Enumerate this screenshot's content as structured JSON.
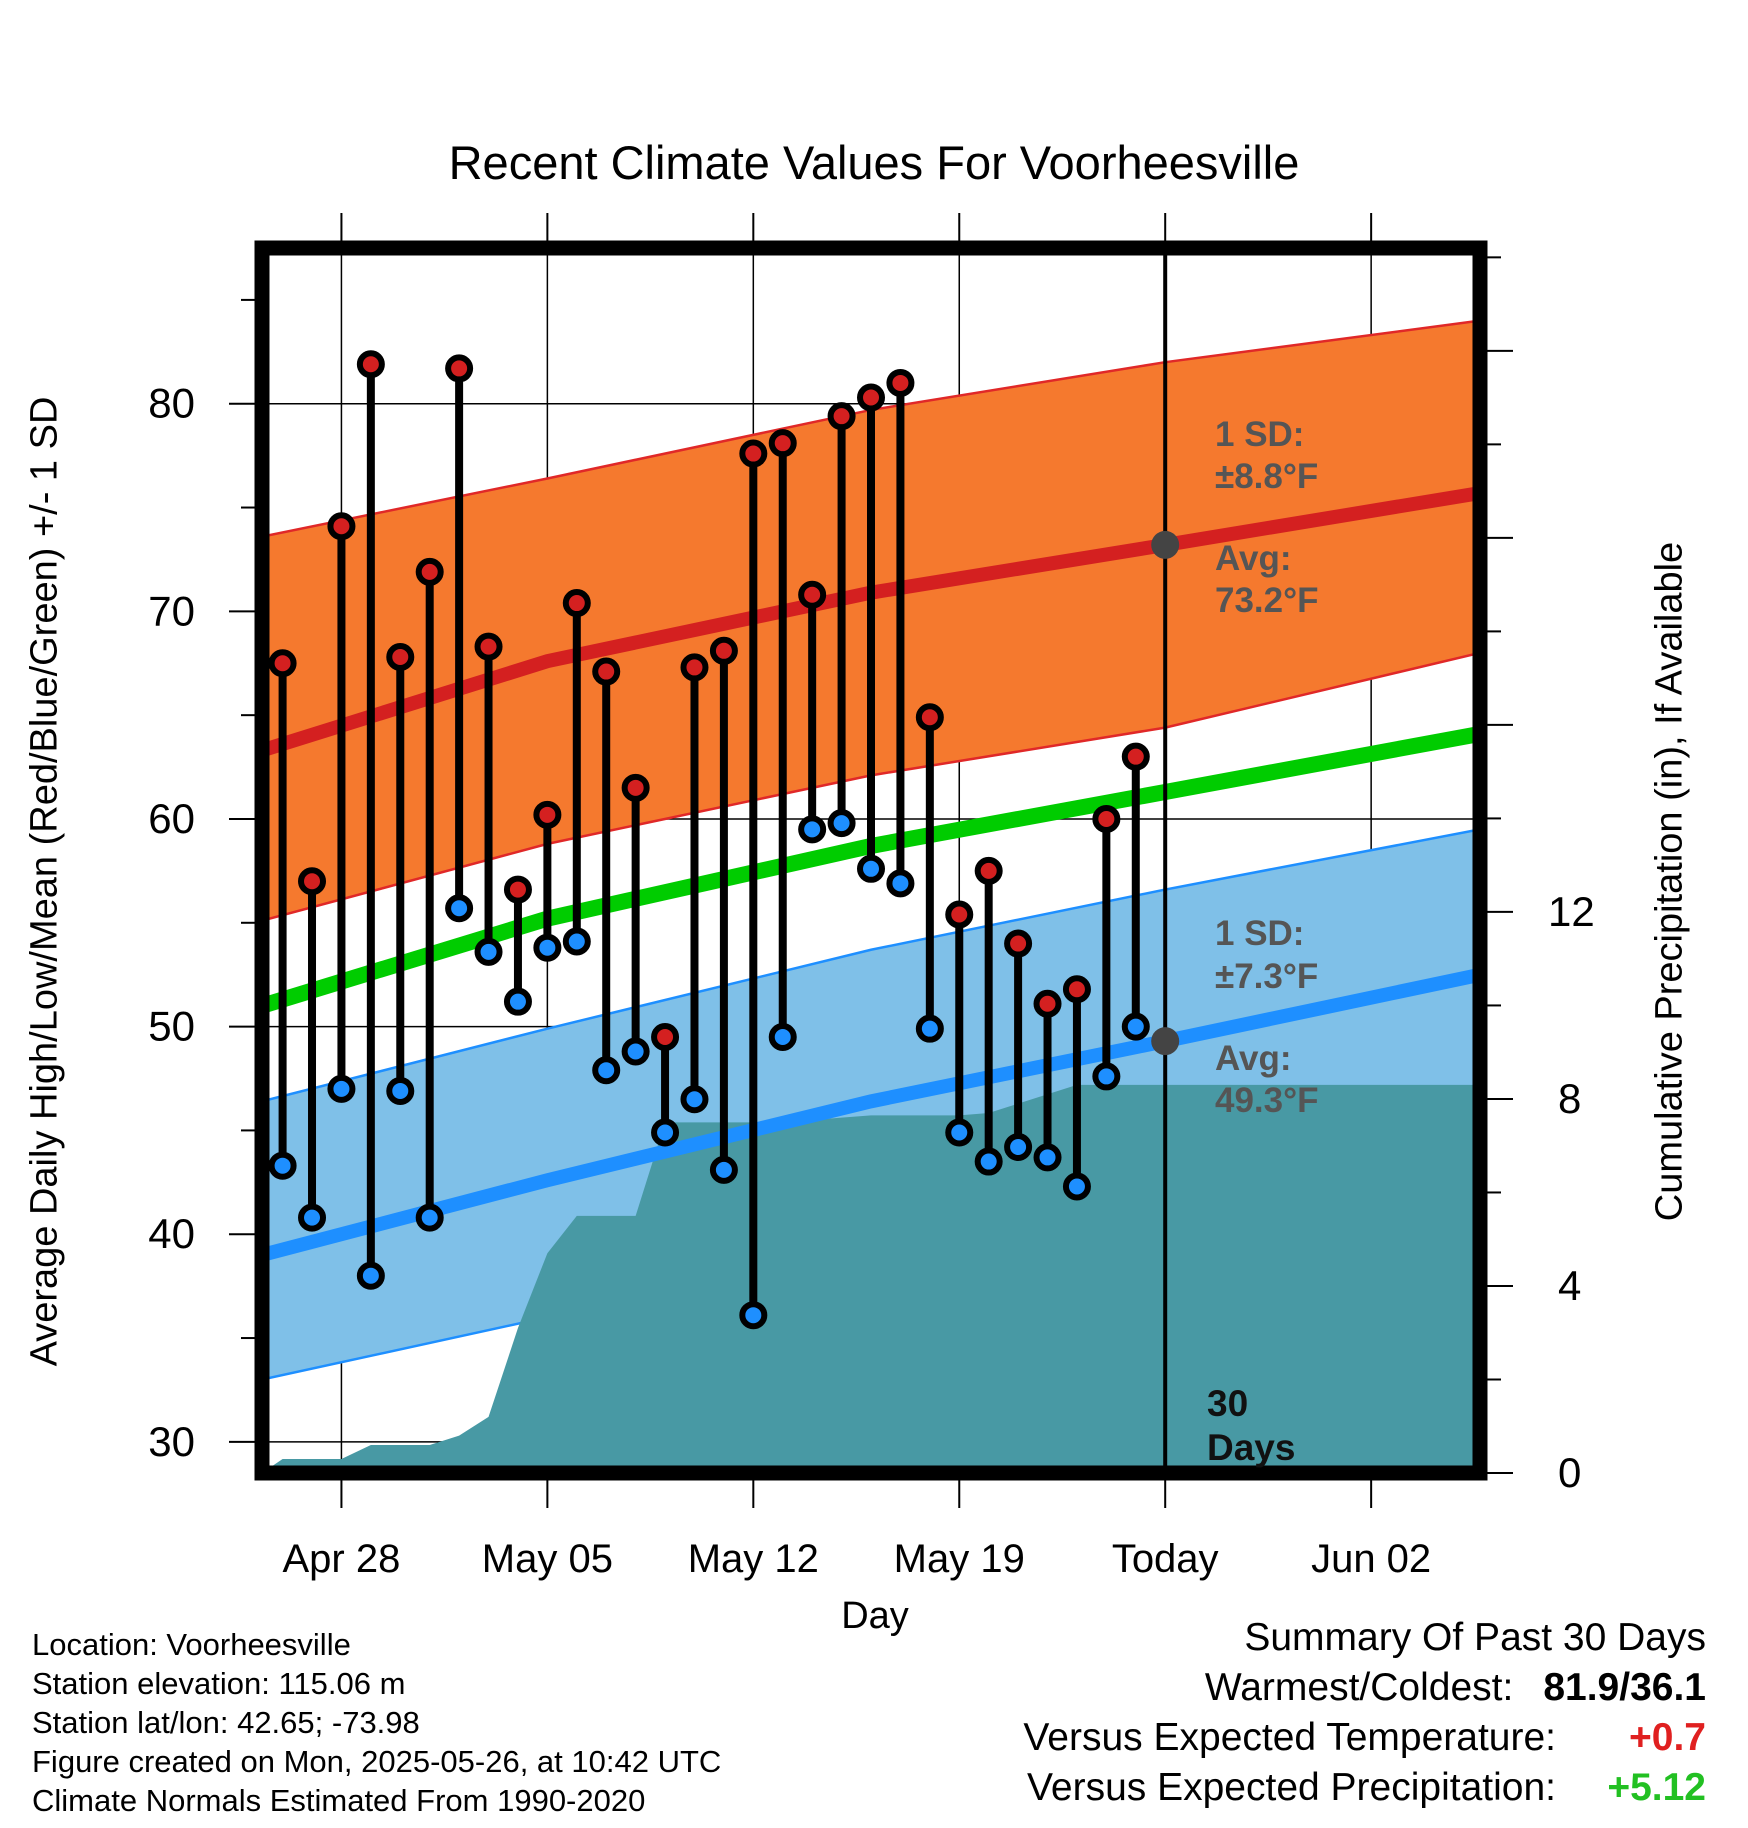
{
  "title": "Recent Climate Values For Voorheesville",
  "y_axis_left_label": "Average Daily High/Low/Mean (Red/Blue/Green) +/- 1 SD",
  "y_axis_right_label": "Cumulative Precipitation (in), If Available",
  "x_axis_label": "Day",
  "annotations": {
    "high_sd_line1": "1 SD:",
    "high_sd_line2": "±8.8°F",
    "high_avg_line1": "Avg:",
    "high_avg_line2": "73.2°F",
    "low_sd_line1": "1 SD:",
    "low_sd_line2": "±7.3°F",
    "low_avg_line1": "Avg:",
    "low_avg_line2": "49.3°F",
    "days_line1": "30",
    "days_line2": "Days"
  },
  "station_info": [
    "Location: Voorheesville",
    "Station elevation: 115.06 m",
    "Station lat/lon: 42.65; -73.98",
    "Figure created on Mon, 2025-05-26, at 10:42 UTC",
    "Climate Normals Estimated From 1990-2020"
  ],
  "summary": {
    "heading": "Summary Of Past 30 Days",
    "warmest_coldest_label": "Warmest/Coldest:",
    "warmest_coldest_value": "81.9/36.1",
    "temp_label": "Versus Expected Temperature:",
    "temp_value": "+0.7",
    "precip_label": "Versus Expected Precipitation:",
    "precip_value": "+5.12"
  },
  "colors": {
    "high_band": "#f5792e",
    "high_mean": "#d42020",
    "low_band": "#7fc0e8",
    "low_mean": "#1e8fff",
    "daily_mean": "#00cc00",
    "precip_fill": "#4899a4",
    "high_marker": "#d42020",
    "low_marker": "#1e8fff"
  },
  "chart_data": {
    "type": "line",
    "x_ticks": [
      "Apr 28",
      "May 05",
      "May 12",
      "May 19",
      "Today",
      "Jun 02"
    ],
    "x_tick_days": [
      2,
      9,
      16,
      23,
      30,
      37
    ],
    "x_range": [
      -0.7,
      40.7
    ],
    "y_left_range": [
      28.5,
      87.5
    ],
    "y_left_ticks": [
      30,
      40,
      50,
      60,
      70,
      80
    ],
    "y_right_range": [
      0,
      26.2
    ],
    "y_right_ticks": [
      0,
      4,
      8,
      12
    ],
    "days": [
      "Apr 26",
      "Apr 27",
      "Apr 28",
      "Apr 29",
      "Apr 30",
      "May 01",
      "May 02",
      "May 03",
      "May 04",
      "May 05",
      "May 06",
      "May 07",
      "May 08",
      "May 09",
      "May 10",
      "May 11",
      "May 12",
      "May 13",
      "May 14",
      "May 15",
      "May 16",
      "May 17",
      "May 18",
      "May 19",
      "May 20",
      "May 21",
      "May 22",
      "May 23",
      "May 24",
      "May 25"
    ],
    "daily_high": [
      67.5,
      57.0,
      74.1,
      81.9,
      67.8,
      71.9,
      81.7,
      68.3,
      56.6,
      60.2,
      70.4,
      67.1,
      61.5,
      49.5,
      67.3,
      68.1,
      77.6,
      78.1,
      70.8,
      79.4,
      80.3,
      81.0,
      64.9,
      55.4,
      57.5,
      54.0,
      51.1,
      51.8,
      60.0,
      63.0
    ],
    "daily_low": [
      43.3,
      40.8,
      47.0,
      38.0,
      46.9,
      40.8,
      55.7,
      53.6,
      51.2,
      53.8,
      54.1,
      47.9,
      48.8,
      44.9,
      46.5,
      43.1,
      36.1,
      49.5,
      59.5,
      59.8,
      57.6,
      56.9,
      49.9,
      44.9,
      43.5,
      44.2,
      43.7,
      42.3,
      47.6,
      50.0
    ],
    "normal_high": {
      "x": [
        -0.7,
        9,
        20,
        30,
        40.7
      ],
      "mean": [
        63.3,
        67.6,
        70.9,
        73.2,
        75.7
      ],
      "upper": [
        73.6,
        76.4,
        79.7,
        82.0,
        84.0
      ],
      "lower": [
        55.1,
        58.8,
        62.1,
        64.4,
        68.0
      ]
    },
    "normal_low": {
      "x": [
        -0.7,
        9,
        20,
        30,
        40.7
      ],
      "mean": [
        39.0,
        42.6,
        46.4,
        49.3,
        52.5
      ],
      "upper": [
        46.4,
        49.9,
        53.7,
        56.6,
        59.5
      ],
      "lower": [
        33.0,
        36.0,
        39.4,
        42.0,
        45.2
      ]
    },
    "normal_mean": {
      "x": [
        -0.7,
        9,
        20,
        30,
        40.7
      ],
      "values": [
        51.0,
        55.2,
        58.7,
        61.3,
        64.1
      ]
    },
    "cumulative_precip": {
      "x": [
        -0.7,
        0,
        1,
        2,
        3,
        4,
        5,
        6,
        7,
        8,
        9,
        10,
        11,
        12,
        13,
        14,
        15,
        16,
        17,
        18,
        19,
        20,
        21,
        22,
        23,
        24,
        25,
        26,
        27,
        28,
        29,
        40.7
      ],
      "values": [
        0,
        0.3,
        0.3,
        0.3,
        0.6,
        0.6,
        0.6,
        0.8,
        1.2,
        3.1,
        4.7,
        5.5,
        5.5,
        5.5,
        7.5,
        7.5,
        7.5,
        7.5,
        7.5,
        7.55,
        7.6,
        7.65,
        7.65,
        7.65,
        7.65,
        7.7,
        7.9,
        8.1,
        8.3,
        8.3,
        8.3,
        8.3
      ]
    },
    "today_day": 30
  }
}
